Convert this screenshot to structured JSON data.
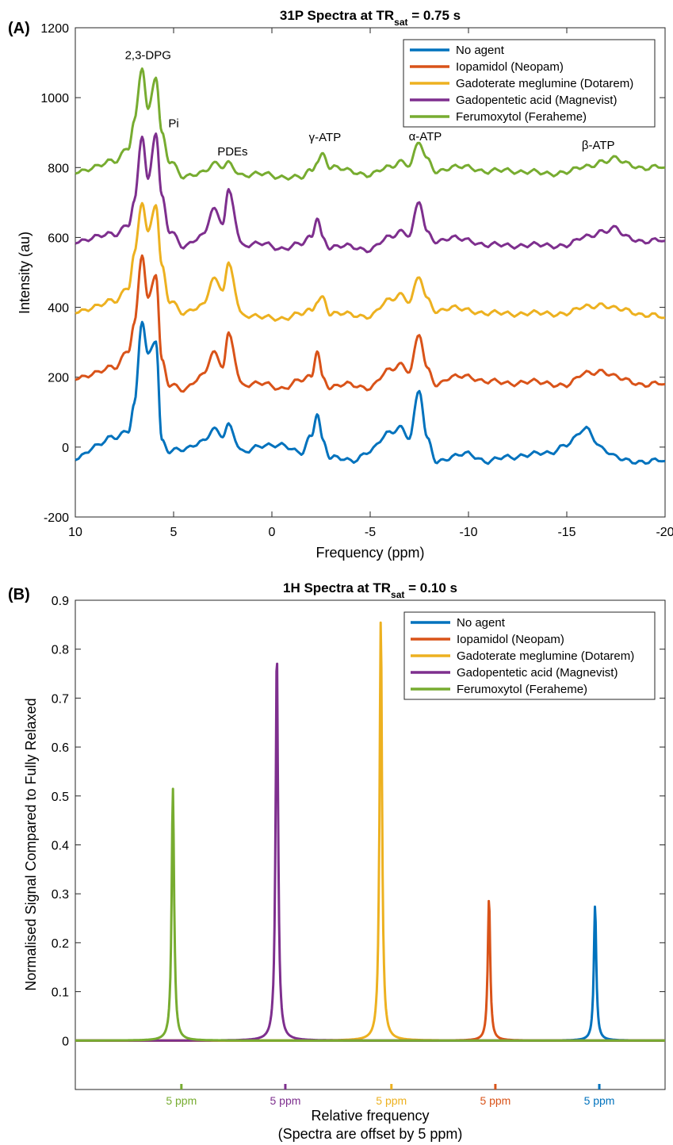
{
  "colors": {
    "No agent": "#0072BD",
    "Iopamidol (Neopam)": "#D95319",
    "Gadoterate meglumine (Dotarem)": "#EDB120",
    "Gadopentetic acid (Magnevist)": "#7E2F8E",
    "Ferumoxytol (Feraheme)": "#77AC30"
  },
  "chart_data": [
    {
      "panel_label": "(A)",
      "type": "line",
      "title": "31P Spectra at  TR",
      "title_sub": "sat",
      "title_tail": " = 0.75 s",
      "xlabel": "Frequency (ppm)",
      "ylabel": "Intensity (au)",
      "xlim": [
        10,
        -20
      ],
      "ylim": [
        -200,
        1200
      ],
      "x_reversed": true,
      "xticks": [
        10,
        5,
        0,
        -5,
        -10,
        -15,
        -20
      ],
      "xtick_labels": [
        "10",
        "5",
        "0",
        "-5",
        "-10",
        "-15",
        "-20"
      ],
      "yticks": [
        -200,
        0,
        200,
        400,
        600,
        800,
        1000,
        1200
      ],
      "ytick_labels": [
        "-200",
        "0",
        "200",
        "400",
        "600",
        "800",
        "1000",
        "1200"
      ],
      "legend_position": "top-right",
      "annotations": [
        {
          "text": "2,3-DPG",
          "x": 6.3,
          "y": 1110
        },
        {
          "text": "Pi",
          "x": 5.0,
          "y": 915
        },
        {
          "text": "PDEs",
          "x": 2.0,
          "y": 835
        },
        {
          "text": "γ-ATP",
          "x": -2.7,
          "y": 875
        },
        {
          "text": "α-ATP",
          "x": -7.8,
          "y": 878
        },
        {
          "text": "β-ATP",
          "x": -16.6,
          "y": 853
        }
      ],
      "series": [
        {
          "name": "No agent",
          "x": [
            10,
            9,
            8,
            7.3,
            7,
            6.6,
            6.3,
            5.9,
            5.6,
            5.2,
            4.5,
            3.5,
            3,
            2.5,
            2.2,
            1.5,
            0.5,
            -0.5,
            -1.5,
            -2,
            -2.3,
            -2.6,
            -3,
            -4,
            -5,
            -6,
            -6.5,
            -7,
            -7.5,
            -7.9,
            -8.4,
            -9,
            -10,
            -11,
            -12,
            -13,
            -14,
            -15,
            -16,
            -16.8,
            -17.5,
            -18,
            -19,
            -20
          ],
          "y": [
            -30,
            0,
            30,
            50,
            120,
            360,
            260,
            310,
            20,
            -10,
            -10,
            20,
            50,
            30,
            60,
            -10,
            0,
            10,
            -20,
            30,
            100,
            20,
            -30,
            -40,
            -10,
            40,
            60,
            30,
            160,
            20,
            -40,
            -30,
            -20,
            -40,
            -30,
            -20,
            -20,
            10,
            50,
            0,
            -30,
            -40,
            -40,
            -40
          ]
        },
        {
          "name": "Iopamidol (Neopam)",
          "x": [
            10,
            9,
            8,
            7.3,
            7,
            6.6,
            6.3,
            5.9,
            5.6,
            5.2,
            4.5,
            3.5,
            3,
            2.5,
            2.2,
            1.5,
            0.5,
            -0.5,
            -1.5,
            -2,
            -2.3,
            -2.6,
            -3,
            -4,
            -5,
            -6,
            -6.5,
            -7,
            -7.5,
            -7.9,
            -8.4,
            -9,
            -10,
            -11,
            -12,
            -13,
            -14,
            -15,
            -16,
            -16.8,
            -17.5,
            -18,
            -19,
            -20
          ],
          "y": [
            200,
            210,
            230,
            280,
            350,
            550,
            420,
            500,
            250,
            180,
            160,
            210,
            270,
            230,
            320,
            180,
            180,
            170,
            190,
            200,
            280,
            200,
            170,
            180,
            170,
            220,
            240,
            220,
            320,
            220,
            180,
            200,
            200,
            190,
            180,
            190,
            180,
            180,
            210,
            220,
            200,
            190,
            180,
            180
          ]
        },
        {
          "name": "Gadoterate meglumine (Dotarem)",
          "x": [
            10,
            9,
            8,
            7.3,
            7,
            6.6,
            6.3,
            5.9,
            5.6,
            5.2,
            4.5,
            3.5,
            3,
            2.5,
            2.2,
            1.5,
            0.5,
            -0.5,
            -1.5,
            -2,
            -2.3,
            -2.6,
            -3,
            -4,
            -5,
            -6,
            -6.5,
            -7,
            -7.5,
            -7.9,
            -8.4,
            -9,
            -10,
            -11,
            -12,
            -13,
            -14,
            -15,
            -16,
            -16.8,
            -17.5,
            -18,
            -19,
            -20
          ],
          "y": [
            390,
            400,
            420,
            460,
            550,
            700,
            610,
            700,
            520,
            420,
            380,
            410,
            480,
            450,
            520,
            380,
            370,
            370,
            380,
            390,
            420,
            430,
            380,
            380,
            375,
            420,
            440,
            420,
            485,
            420,
            390,
            400,
            390,
            385,
            380,
            385,
            380,
            385,
            400,
            410,
            395,
            390,
            380,
            370
          ]
        },
        {
          "name": "Gadopentetic acid (Magnevist)",
          "x": [
            10,
            9,
            8,
            7.3,
            7,
            6.6,
            6.3,
            5.9,
            5.6,
            5.2,
            4.5,
            3.5,
            3,
            2.5,
            2.2,
            1.5,
            0.5,
            -0.5,
            -1.5,
            -2,
            -2.3,
            -2.6,
            -3,
            -4,
            -5,
            -6,
            -6.5,
            -7,
            -7.5,
            -7.9,
            -8.4,
            -9,
            -10,
            -11,
            -12,
            -13,
            -14,
            -15,
            -16,
            -16.8,
            -17.5,
            -18,
            -19,
            -20
          ],
          "y": [
            590,
            600,
            610,
            640,
            700,
            890,
            760,
            905,
            720,
            620,
            570,
            610,
            680,
            640,
            730,
            580,
            580,
            570,
            580,
            600,
            660,
            600,
            570,
            575,
            565,
            600,
            620,
            610,
            700,
            610,
            590,
            600,
            590,
            580,
            575,
            580,
            575,
            580,
            600,
            620,
            625,
            600,
            590,
            590
          ]
        },
        {
          "name": "Ferumoxytol (Feraheme)",
          "x": [
            10,
            9,
            8,
            7.3,
            7,
            6.6,
            6.3,
            5.9,
            5.6,
            5.2,
            4.5,
            3.5,
            3,
            2.5,
            2.2,
            1.5,
            0.5,
            -0.5,
            -1.5,
            -2,
            -2.3,
            -2.6,
            -3,
            -4,
            -5,
            -6,
            -6.5,
            -7,
            -7.5,
            -7.9,
            -8.4,
            -9,
            -10,
            -11,
            -12,
            -13,
            -14,
            -15,
            -16,
            -16.8,
            -17.5,
            -18,
            -19,
            -20
          ],
          "y": [
            790,
            800,
            820,
            860,
            930,
            1085,
            960,
            1065,
            900,
            820,
            770,
            790,
            810,
            800,
            810,
            780,
            780,
            775,
            770,
            790,
            820,
            840,
            800,
            790,
            780,
            800,
            820,
            810,
            870,
            820,
            790,
            800,
            800,
            790,
            790,
            790,
            780,
            790,
            800,
            820,
            825,
            810,
            800,
            800
          ]
        }
      ]
    },
    {
      "panel_label": "(B)",
      "type": "line",
      "title": "1H Spectra at TR",
      "title_sub": "sat",
      "title_tail": " = 0.10 s",
      "xlabel": "Relative frequency",
      "xlabel2": "(Spectra are offset by 5 ppm)",
      "ylabel": "Normalised Signal Compared to Fully Relaxed",
      "xlim": [
        0,
        27.8
      ],
      "ylim": [
        -0.1,
        0.9
      ],
      "yticks": [
        0,
        0.1,
        0.2,
        0.3,
        0.4,
        0.5,
        0.6,
        0.7,
        0.8,
        0.9
      ],
      "ytick_labels": [
        "0",
        "0.1",
        "0.2",
        "0.3",
        "0.4",
        "0.5",
        "0.6",
        "0.7",
        "0.8",
        "0.9"
      ],
      "legend_position": "top-right",
      "offset_labels": [
        {
          "text": "5 ppm",
          "x": 5.0,
          "series": "Ferumoxytol (Feraheme)"
        },
        {
          "text": "5 ppm",
          "x": 9.9,
          "series": "Gadopentetic acid (Magnevist)"
        },
        {
          "text": "5 ppm",
          "x": 14.9,
          "series": "Gadoterate meglumine (Dotarem)"
        },
        {
          "text": "5 ppm",
          "x": 19.8,
          "series": "Iopamidol (Neopam)"
        },
        {
          "text": "5 ppm",
          "x": 24.7,
          "series": "No agent"
        }
      ],
      "series": [
        {
          "name": "No agent",
          "center": 24.5,
          "peak": 0.275
        },
        {
          "name": "Iopamidol (Neopam)",
          "center": 19.5,
          "peak": 0.29
        },
        {
          "name": "Gadoterate meglumine (Dotarem)",
          "center": 14.4,
          "peak": 0.86
        },
        {
          "name": "Gadopentetic acid (Magnevist)",
          "center": 9.5,
          "peak": 0.8
        },
        {
          "name": "Ferumoxytol (Feraheme)",
          "center": 4.6,
          "peak": 0.515
        }
      ]
    }
  ]
}
